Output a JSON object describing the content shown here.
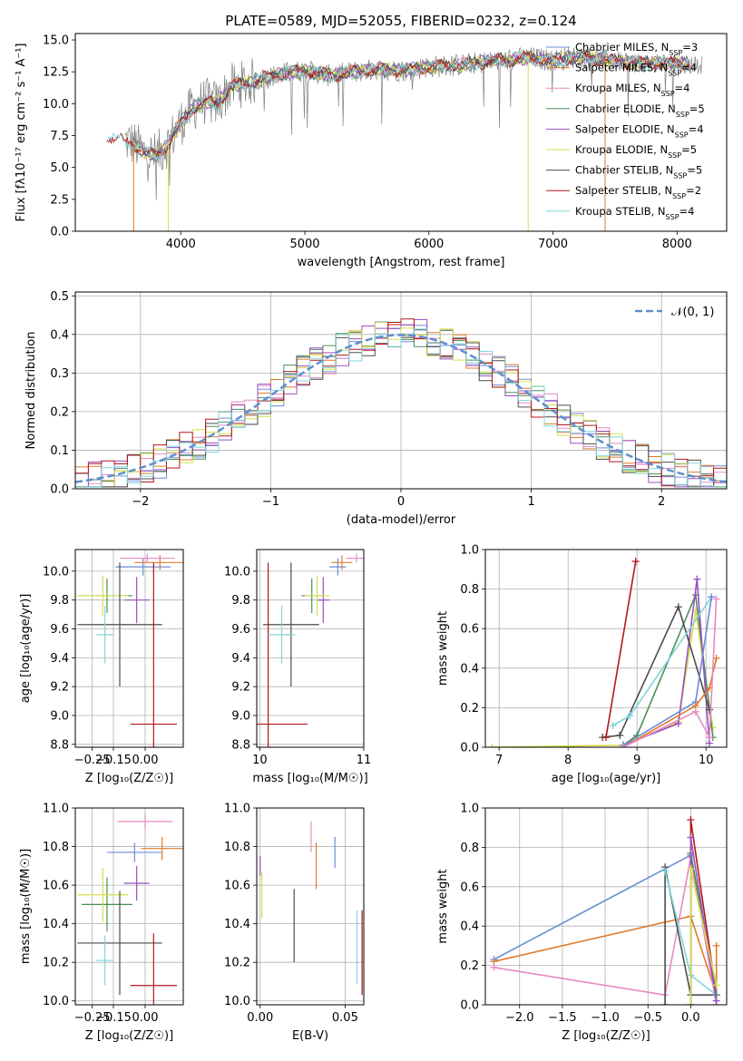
{
  "title": "PLATE=0589, MJD=52055, FIBERID=0232, z=0.124",
  "colors": {
    "chabrier_miles": "#6b8dd6",
    "salpeter_miles": "#e07b2b",
    "kroupa_miles": "#e78ac3",
    "chabrier_elodie": "#4a8f5a",
    "salpeter_elodie": "#9b4fc0",
    "kroupa_elodie": "#d6e04a",
    "chabrier_stelib": "#4d4d4d",
    "salpeter_stelib": "#b3171c",
    "kroupa_stelib": "#7fd6dc",
    "data": "#808080",
    "normal": "#5f8fcf"
  },
  "chart_data": [
    {
      "id": "spectrum",
      "type": "line",
      "xlabel": "wavelength [Angstrom, rest frame]",
      "ylabel": "Flux [f_λ10^{-17} erg cm^{-2} s^{-1} A^{-1}]",
      "xlim": [
        3150,
        8400
      ],
      "ylim": [
        0,
        15.5
      ],
      "xticks": [
        "4000",
        "5000",
        "6000",
        "7000",
        "8000"
      ],
      "yticks": [
        "0.0",
        "2.5",
        "5.0",
        "7.5",
        "10.0",
        "12.5",
        "15.0"
      ],
      "legend_position": "top-right",
      "series": [
        {
          "name": "Chabrier MILES",
          "nssp": "3",
          "color_key": "chabrier_miles"
        },
        {
          "name": "Salpeter MILES",
          "nssp": "4",
          "color_key": "salpeter_miles"
        },
        {
          "name": "Kroupa MILES",
          "nssp": "4",
          "color_key": "kroupa_miles"
        },
        {
          "name": "Chabrier ELODIE",
          "nssp": "5",
          "color_key": "chabrier_elodie"
        },
        {
          "name": "Salpeter ELODIE",
          "nssp": "4",
          "color_key": "salpeter_elodie"
        },
        {
          "name": "Kroupa ELODIE",
          "nssp": "5",
          "color_key": "kroupa_elodie"
        },
        {
          "name": "Chabrier STELIB",
          "nssp": "5",
          "color_key": "chabrier_stelib"
        },
        {
          "name": "Salpeter STELIB",
          "nssp": "2",
          "color_key": "salpeter_stelib"
        },
        {
          "name": "Kroupa STELIB",
          "nssp": "4",
          "color_key": "kroupa_stelib"
        }
      ],
      "continuum": {
        "x": [
          3400,
          3600,
          3700,
          3800,
          3900,
          4000,
          4100,
          4200,
          4300,
          4400,
          4600,
          4800,
          5000,
          5200,
          5400,
          5600,
          5800,
          6000,
          6200,
          6500,
          6800,
          7000,
          7200,
          7400,
          7600,
          8000,
          8100
        ],
        "y": [
          7.3,
          7.0,
          6.2,
          5.9,
          6.9,
          8.5,
          9.7,
          10.2,
          10.0,
          11.3,
          11.8,
          12.3,
          12.6,
          12.2,
          12.5,
          12.7,
          12.6,
          12.9,
          13.0,
          13.3,
          13.6,
          13.4,
          13.7,
          13.5,
          13.2,
          13.2,
          13.1
        ]
      },
      "dips": [
        {
          "x": 3620,
          "to": 0,
          "color_key": "salpeter_miles"
        },
        {
          "x": 3900,
          "to": 0,
          "color_key": "kroupa_elodie"
        },
        {
          "x": 6800,
          "to": 0,
          "color_key": "kroupa_elodie"
        },
        {
          "x": 7420,
          "to": 0,
          "color_key": "salpeter_miles"
        }
      ]
    },
    {
      "id": "residuals",
      "type": "area",
      "xlabel": "(data-model)/error",
      "ylabel": "Normed distribution",
      "xlim": [
        -2.5,
        2.5
      ],
      "ylim": [
        0,
        0.51
      ],
      "xticks": [
        "−2",
        "−1",
        "0",
        "1",
        "2"
      ],
      "xtick_values": [
        -2,
        -1,
        0,
        1,
        2
      ],
      "yticks": [
        "0.0",
        "0.1",
        "0.2",
        "0.3",
        "0.4",
        "0.5"
      ],
      "ytick_values": [
        0,
        0.1,
        0.2,
        0.3,
        0.4,
        0.5
      ],
      "grid": true,
      "legend_position": "top-right",
      "legend_label": "𝒩(0, 1)",
      "bin_width": 0.1
    },
    {
      "id": "z_age",
      "type": "scatter",
      "xlabel": "Z [log₁₀(Z/Z☉)]",
      "ylabel": "age  [log₁₀(age/yr)]",
      "xlim": [
        -0.33,
        0.18
      ],
      "ylim": [
        8.78,
        10.15
      ],
      "xticks": [
        "−0.25",
        "−0.15",
        "0.00"
      ],
      "xtick_values": [
        -0.25,
        -0.15,
        0.0
      ],
      "yticks": [
        "8.8",
        "9.0",
        "9.2",
        "9.4",
        "9.6",
        "9.8",
        "10.0"
      ],
      "ytick_values": [
        8.8,
        9.0,
        9.2,
        9.4,
        9.6,
        9.8,
        10.0
      ],
      "grid": true,
      "points": [
        {
          "color_key": "chabrier_miles",
          "x": -0.01,
          "xerr": 0.13,
          "y": 10.03,
          "yerr": 0.06
        },
        {
          "color_key": "salpeter_miles",
          "x": 0.07,
          "xerr": 0.12,
          "y": 10.06,
          "yerr": 0.05
        },
        {
          "color_key": "kroupa_miles",
          "x": 0.01,
          "xerr": 0.13,
          "y": 10.09,
          "yerr": 0.03
        },
        {
          "color_key": "chabrier_elodie",
          "x": -0.18,
          "xerr": 0.12,
          "y": 9.83,
          "yerr": 0.12
        },
        {
          "color_key": "salpeter_elodie",
          "x": -0.04,
          "xerr": 0.06,
          "y": 9.8,
          "yerr": 0.16
        },
        {
          "color_key": "kroupa_elodie",
          "x": -0.2,
          "xerr": 0.12,
          "y": 9.83,
          "yerr": 0.14
        },
        {
          "color_key": "chabrier_stelib",
          "x": -0.12,
          "xerr": 0.2,
          "y": 9.63,
          "yerr": 0.43
        },
        {
          "color_key": "salpeter_stelib",
          "x": 0.04,
          "xerr": 0.11,
          "y": 8.94,
          "yerr": 1.12
        },
        {
          "color_key": "kroupa_stelib",
          "x": -0.19,
          "xerr": 0.04,
          "y": 9.56,
          "yerr": 0.2
        }
      ]
    },
    {
      "id": "mass_age",
      "type": "scatter",
      "xlabel": "mass [log₁₀(M/M☉)]",
      "ylabel": "",
      "xlim": [
        9.97,
        11.0
      ],
      "ylim": [
        8.78,
        10.15
      ],
      "xticks": [
        "10",
        "11"
      ],
      "xtick_values": [
        10,
        11
      ],
      "yticks": [
        "8.8",
        "9.0",
        "9.2",
        "9.4",
        "9.6",
        "9.8",
        "10.0"
      ],
      "ytick_values": [
        8.8,
        9.0,
        9.2,
        9.4,
        9.6,
        9.8,
        10.0
      ],
      "grid": true,
      "points": [
        {
          "color_key": "chabrier_miles",
          "x": 10.75,
          "xerr": 0.08,
          "y": 10.03,
          "yerr": 0.06
        },
        {
          "color_key": "salpeter_miles",
          "x": 10.79,
          "xerr": 0.1,
          "y": 10.06,
          "yerr": 0.05
        },
        {
          "color_key": "kroupa_miles",
          "x": 10.93,
          "xerr": 0.1,
          "y": 10.09,
          "yerr": 0.03
        },
        {
          "color_key": "chabrier_elodie",
          "x": 10.5,
          "xerr": 0.1,
          "y": 9.83,
          "yerr": 0.12
        },
        {
          "color_key": "salpeter_elodie",
          "x": 10.61,
          "xerr": 0.06,
          "y": 9.8,
          "yerr": 0.16
        },
        {
          "color_key": "kroupa_elodie",
          "x": 10.55,
          "xerr": 0.12,
          "y": 9.83,
          "yerr": 0.14
        },
        {
          "color_key": "chabrier_stelib",
          "x": 10.3,
          "xerr": 0.27,
          "y": 9.63,
          "yerr": 0.43
        },
        {
          "color_key": "salpeter_stelib",
          "x": 10.08,
          "xerr": 0.38,
          "y": 8.94,
          "yerr": 1.12
        },
        {
          "color_key": "kroupa_stelib",
          "x": 10.21,
          "xerr": 0.13,
          "y": 9.56,
          "yerr": 0.2
        }
      ]
    },
    {
      "id": "mass_weight_age",
      "type": "line",
      "xlabel": "age  [log₁₀(age/yr)]",
      "ylabel": "mass weight",
      "xlim": [
        6.8,
        10.3
      ],
      "ylim": [
        0,
        1.0
      ],
      "xticks": [
        "7",
        "8",
        "9",
        "10"
      ],
      "xtick_values": [
        7,
        8,
        9,
        10
      ],
      "yticks": [
        "0.0",
        "0.2",
        "0.4",
        "0.6",
        "0.8",
        "1.0"
      ],
      "ytick_values": [
        0,
        0.2,
        0.4,
        0.6,
        0.8,
        1.0
      ],
      "grid": true,
      "series": [
        {
          "color_key": "kroupa_elodie",
          "x": [
            6.9,
            8.8,
            9.6,
            9.85,
            10.1
          ],
          "y": [
            0.0,
            0.01,
            0.13,
            0.69,
            0.1
          ]
        },
        {
          "color_key": "chabrier_elodie",
          "x": [
            8.8,
            9.0,
            9.85,
            10.1
          ],
          "y": [
            0.01,
            0.06,
            0.77,
            0.05
          ]
        },
        {
          "color_key": "salpeter_elodie",
          "x": [
            8.8,
            9.6,
            9.87,
            10.05
          ],
          "y": [
            0.01,
            0.12,
            0.85,
            0.02
          ]
        },
        {
          "color_key": "chabrier_stelib",
          "x": [
            8.5,
            8.75,
            9.6,
            10.05
          ],
          "y": [
            0.05,
            0.06,
            0.71,
            0.19
          ]
        },
        {
          "color_key": "salpeter_stelib",
          "x": [
            8.55,
            8.98
          ],
          "y": [
            0.05,
            0.94
          ]
        },
        {
          "color_key": "kroupa_stelib",
          "x": [
            8.65,
            8.9,
            10.08
          ],
          "y": [
            0.11,
            0.16,
            0.76
          ]
        },
        {
          "color_key": "chabrier_miles",
          "x": [
            8.8,
            9.85,
            10.08
          ],
          "y": [
            0.01,
            0.23,
            0.76
          ]
        },
        {
          "color_key": "salpeter_miles",
          "x": [
            8.8,
            9.85,
            10.05,
            10.15
          ],
          "y": [
            0.0,
            0.21,
            0.3,
            0.45
          ]
        },
        {
          "color_key": "kroupa_miles",
          "x": [
            8.8,
            9.85,
            10.05,
            10.15
          ],
          "y": [
            0.0,
            0.18,
            0.05,
            0.75
          ]
        }
      ]
    },
    {
      "id": "z_mass",
      "type": "scatter",
      "xlabel": "Z [log₁₀(Z/Z☉)]",
      "ylabel": "mass [log₁₀(M/M☉)]",
      "xlim": [
        -0.33,
        0.18
      ],
      "ylim": [
        9.98,
        11.0
      ],
      "xticks": [
        "−0.25",
        "−0.15",
        "0.00"
      ],
      "xtick_values": [
        -0.25,
        -0.15,
        0.0
      ],
      "yticks": [
        "10.0",
        "10.2",
        "10.4",
        "10.6",
        "10.8",
        "11.0"
      ],
      "ytick_values": [
        10.0,
        10.2,
        10.4,
        10.6,
        10.8,
        11.0
      ],
      "grid": true,
      "points": [
        {
          "color_key": "chabrier_miles",
          "x": -0.05,
          "xerr": 0.13,
          "y": 10.77,
          "yerr": 0.05
        },
        {
          "color_key": "salpeter_miles",
          "x": 0.08,
          "xerr": 0.1,
          "y": 10.79,
          "yerr": 0.06
        },
        {
          "color_key": "kroupa_miles",
          "x": 0.0,
          "xerr": 0.13,
          "y": 10.93,
          "yerr": 0.04
        },
        {
          "color_key": "chabrier_elodie",
          "x": -0.18,
          "xerr": 0.12,
          "y": 10.5,
          "yerr": 0.14
        },
        {
          "color_key": "salpeter_elodie",
          "x": -0.04,
          "xerr": 0.06,
          "y": 10.61,
          "yerr": 0.09
        },
        {
          "color_key": "kroupa_elodie",
          "x": -0.2,
          "xerr": 0.12,
          "y": 10.55,
          "yerr": 0.14
        },
        {
          "color_key": "chabrier_stelib",
          "x": -0.12,
          "xerr": 0.2,
          "y": 10.3,
          "yerr": 0.27
        },
        {
          "color_key": "salpeter_stelib",
          "x": 0.04,
          "xerr": 0.11,
          "y": 10.08,
          "yerr": 0.27
        },
        {
          "color_key": "kroupa_stelib",
          "x": -0.19,
          "xerr": 0.04,
          "y": 10.21,
          "yerr": 0.13
        }
      ]
    },
    {
      "id": "ebv_mass",
      "type": "scatter",
      "xlabel": "E(B-V)",
      "ylabel": "",
      "xlim": [
        -0.002,
        0.061
      ],
      "ylim": [
        9.98,
        11.0
      ],
      "xticks": [
        "0.00",
        "0.05"
      ],
      "xtick_values": [
        0.0,
        0.05
      ],
      "yticks": [
        "10.0",
        "10.2",
        "10.4",
        "10.6",
        "10.8",
        "11.0"
      ],
      "ytick_values": [
        10.0,
        10.2,
        10.4,
        10.6,
        10.8,
        11.0
      ],
      "grid": true,
      "points": [
        {
          "color_key": "chabrier_miles",
          "x": 0.044,
          "y": 10.77,
          "yerr": 0.08
        },
        {
          "color_key": "salpeter_miles",
          "x": 0.033,
          "y": 10.7,
          "yerr": 0.12
        },
        {
          "color_key": "kroupa_miles",
          "x": 0.03,
          "y": 10.85,
          "yerr": 0.08
        },
        {
          "color_key": "salpeter_elodie",
          "x": 0.0,
          "y": 10.7,
          "yerr": 0.05
        },
        {
          "color_key": "kroupa_elodie",
          "x": 0.001,
          "y": 10.55,
          "yerr": 0.12
        },
        {
          "color_key": "chabrier_stelib",
          "x": 0.02,
          "y": 10.39,
          "yerr": 0.19
        },
        {
          "color_key": "salpeter_stelib",
          "x": 0.06,
          "y": 10.25,
          "yerr": 0.22
        },
        {
          "color_key": "kroupa_stelib",
          "x": 0.057,
          "y": 10.28,
          "yerr": 0.19
        }
      ]
    },
    {
      "id": "mass_weight_z",
      "type": "line",
      "xlabel": "Z [log₁₀(Z/Z☉)]",
      "ylabel": "mass weight",
      "xlim": [
        -2.4,
        0.42
      ],
      "ylim": [
        0,
        1.0
      ],
      "xticks": [
        "−2.0",
        "−1.5",
        "−1.0",
        "−0.5",
        "0.0"
      ],
      "xtick_values": [
        -2.0,
        -1.5,
        -1.0,
        -0.5,
        0.0
      ],
      "yticks": [
        "0.0",
        "0.2",
        "0.4",
        "0.6",
        "0.8",
        "1.0"
      ],
      "ytick_values": [
        0,
        0.2,
        0.4,
        0.6,
        0.8,
        1.0
      ],
      "grid": true,
      "series": [
        {
          "color_key": "chabrier_miles",
          "x": [
            -2.3,
            0.0,
            0.3
          ],
          "y": [
            0.23,
            0.76,
            0.05
          ]
        },
        {
          "color_key": "salpeter_miles",
          "x": [
            -2.3,
            0.0,
            0.3,
            0.3
          ],
          "y": [
            0.22,
            0.45,
            0.05,
            0.3
          ]
        },
        {
          "color_key": "kroupa_miles",
          "x": [
            -2.3,
            -0.3,
            0.0,
            0.3
          ],
          "y": [
            0.19,
            0.05,
            0.75,
            0.0
          ]
        },
        {
          "color_key": "chabrier_stelib",
          "x": [
            -0.3,
            -0.3,
            0.0,
            0.3
          ],
          "y": [
            0.0,
            0.7,
            0.05,
            0.05
          ]
        },
        {
          "color_key": "salpeter_stelib",
          "x": [
            0.0,
            0.0,
            0.3
          ],
          "y": [
            0.0,
            0.94,
            0.05
          ]
        },
        {
          "color_key": "kroupa_stelib",
          "x": [
            -0.3,
            0.0,
            0.3
          ],
          "y": [
            0.68,
            0.15,
            0.05
          ]
        },
        {
          "color_key": "chabrier_elodie",
          "x": [
            0.0,
            0.0,
            0.3
          ],
          "y": [
            0.0,
            0.77,
            0.05
          ]
        },
        {
          "color_key": "salpeter_elodie",
          "x": [
            0.0,
            0.0,
            0.3
          ],
          "y": [
            0.0,
            0.85,
            0.02
          ]
        },
        {
          "color_key": "kroupa_elodie",
          "x": [
            0.0,
            0.0,
            0.3
          ],
          "y": [
            0.0,
            0.69,
            0.1
          ]
        }
      ]
    }
  ]
}
